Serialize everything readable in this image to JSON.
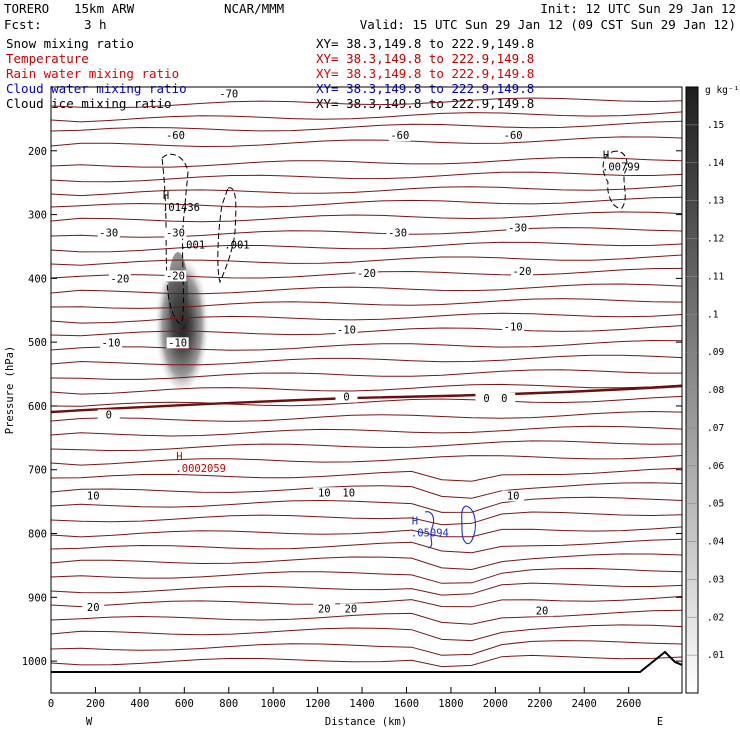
{
  "header": {
    "model": "TORERO",
    "resolution": "15km ARW",
    "center": "NCAR/MMM",
    "init": "Init: 12 UTC Sun 29 Jan 12",
    "fcst_label": "Fcst:",
    "fcst_value": "3 h",
    "valid": "Valid: 15 UTC Sun 29 Jan 12 (09 CST Sun 29 Jan 12)"
  },
  "fields": [
    {
      "name": "Snow mixing ratio",
      "xy": "XY=  38.3,149.8 to 222.9,149.8",
      "color": "#000000"
    },
    {
      "name": "Temperature",
      "xy": "XY=  38.3,149.8 to 222.9,149.8",
      "color": "#c00000"
    },
    {
      "name": "Rain water mixing ratio",
      "xy": "XY=  38.3,149.8 to 222.9,149.8",
      "color": "#e00000"
    },
    {
      "name": "Cloud water mixing ratio",
      "xy": "XY=  38.3,149.8 to 222.9,149.8",
      "color": "#0000cc"
    },
    {
      "name": "Cloud ice mixing ratio",
      "xy": "XY=  38.3,149.8 to 222.9,149.8",
      "color": "#000000"
    }
  ],
  "colors": {
    "temperature": "#7a1515",
    "freezing": "#6b0f0f",
    "rain_label": "#cc0000",
    "cloud_water": "#1a2fd0",
    "cloud_ice": "#000000"
  },
  "chart_data": {
    "type": "heatmap",
    "xlabel": "Distance (km)",
    "ylabel": "Pressure (hPa)",
    "xlim": [
      0,
      2840
    ],
    "ylim": [
      1050,
      100
    ],
    "x_ticks": [
      0,
      200,
      400,
      600,
      800,
      1000,
      1200,
      1400,
      1600,
      1800,
      2000,
      2200,
      2400,
      2600
    ],
    "x_tick_labels": [
      "0",
      "200",
      "400",
      "600",
      "800",
      "1000",
      "1200",
      "1400",
      "1600",
      "1800",
      "2000",
      "2200",
      "2400",
      "2600"
    ],
    "y_ticks": [
      200,
      300,
      400,
      500,
      600,
      700,
      800,
      900,
      1000
    ],
    "y_tick_labels": [
      "200",
      "300",
      "400",
      "500",
      "600",
      "700",
      "800",
      "900",
      "1000"
    ],
    "left_end_label": "W",
    "right_end_label": "E",
    "colorbar": {
      "unit": "g kg⁻¹",
      "values": [
        0.01,
        0.02,
        0.03,
        0.04,
        0.05,
        0.06,
        0.07,
        0.08,
        0.09,
        0.1,
        0.11,
        0.12,
        0.13,
        0.14,
        0.15
      ],
      "labels": [
        ".01",
        ".02",
        ".03",
        ".04",
        ".05",
        ".06",
        ".07",
        ".08",
        ".09",
        ".1",
        ".11",
        ".12",
        ".13",
        ".14",
        ".15"
      ]
    },
    "snow_max": {
      "x": 560,
      "p": 435,
      "value": 0.15
    },
    "temperature_contour_labels": [
      {
        "x": 800,
        "p": 115,
        "text": "-70"
      },
      {
        "x": 560,
        "p": 180,
        "text": "-60"
      },
      {
        "x": 1570,
        "p": 180,
        "text": "-60"
      },
      {
        "x": 2080,
        "p": 180,
        "text": "-60"
      },
      {
        "x": 260,
        "p": 333,
        "text": "-30"
      },
      {
        "x": 560,
        "p": 333,
        "text": "-30"
      },
      {
        "x": 1560,
        "p": 333,
        "text": "-30"
      },
      {
        "x": 2100,
        "p": 325,
        "text": "-30"
      },
      {
        "x": 310,
        "p": 405,
        "text": "-20"
      },
      {
        "x": 560,
        "p": 400,
        "text": "-20"
      },
      {
        "x": 1420,
        "p": 396,
        "text": "-20"
      },
      {
        "x": 2120,
        "p": 393,
        "text": "-20"
      },
      {
        "x": 270,
        "p": 505,
        "text": "-10"
      },
      {
        "x": 570,
        "p": 505,
        "text": "-10"
      },
      {
        "x": 1330,
        "p": 485,
        "text": "-10"
      },
      {
        "x": 2080,
        "p": 480,
        "text": "-10"
      },
      {
        "x": 260,
        "p": 618,
        "text": "0"
      },
      {
        "x": 1330,
        "p": 590,
        "text": "0"
      },
      {
        "x": 1960,
        "p": 592,
        "text": "0"
      },
      {
        "x": 2040,
        "p": 592,
        "text": "0"
      },
      {
        "x": 190,
        "p": 745,
        "text": "10"
      },
      {
        "x": 1230,
        "p": 740,
        "text": "10"
      },
      {
        "x": 1340,
        "p": 740,
        "text": "10"
      },
      {
        "x": 2080,
        "p": 745,
        "text": "10"
      },
      {
        "x": 190,
        "p": 920,
        "text": "20"
      },
      {
        "x": 1230,
        "p": 922,
        "text": "20"
      },
      {
        "x": 1350,
        "p": 922,
        "text": "20"
      },
      {
        "x": 2210,
        "p": 925,
        "text": "20"
      }
    ],
    "markers": [
      {
        "x": 500,
        "p": 288,
        "h": "H",
        "value": ".01436",
        "color": "#000000"
      },
      {
        "x": 580,
        "p": 347,
        "h": "",
        "value": ".001",
        "color": "#000000"
      },
      {
        "x": 780,
        "p": 347,
        "h": "",
        "value": ".001",
        "color": "#000000"
      },
      {
        "x": 2480,
        "p": 225,
        "h": "H",
        "value": ".00799",
        "color": "#000000"
      },
      {
        "x": 560,
        "p": 697,
        "h": "H",
        "value": ".0002059",
        "color": "#cc0000"
      },
      {
        "x": 1620,
        "p": 798,
        "h": "H",
        "value": ".05094",
        "color": "#1a2fd0"
      }
    ]
  }
}
